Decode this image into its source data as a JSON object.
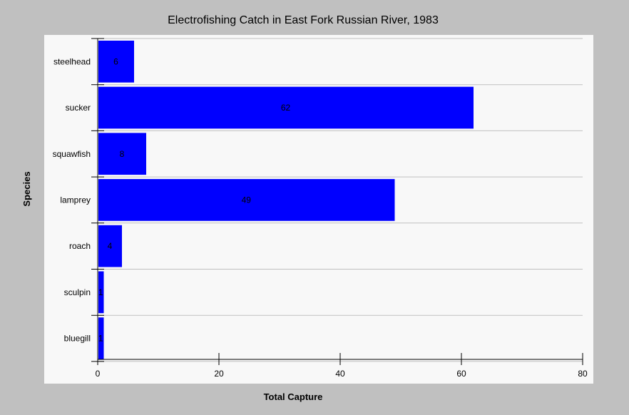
{
  "chart_data": {
    "type": "bar",
    "orientation": "horizontal",
    "title": "Electrofishing Catch in East Fork Russian River, 1983",
    "xlabel": "Total Capture",
    "ylabel": "Species",
    "categories": [
      "steelhead",
      "sucker",
      "squawfish",
      "lamprey",
      "roach",
      "sculpin",
      "bluegill"
    ],
    "values": [
      6,
      62,
      8,
      49,
      4,
      1,
      1
    ],
    "data_labels": [
      "6",
      "62",
      "8",
      "49",
      "4",
      "1",
      "1"
    ],
    "xlim": [
      0,
      80
    ],
    "xticks": [
      0,
      20,
      40,
      60,
      80
    ],
    "grid": true,
    "colors": {
      "bar": "#0000ff",
      "background": "#c0c0c0",
      "plot_area": "#f8f8f8",
      "grid": "#c0c0c0"
    }
  }
}
